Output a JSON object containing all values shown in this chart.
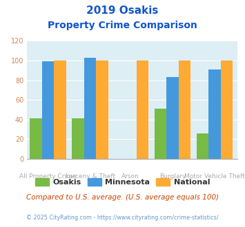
{
  "title_line1": "2019 Osakis",
  "title_line2": "Property Crime Comparison",
  "categories": [
    "All Property Crime",
    "Larceny & Theft",
    "Arson",
    "Burglary",
    "Motor Vehicle Theft"
  ],
  "cat_line1": [
    "",
    "Larceny & Theft",
    "",
    "Burglary",
    ""
  ],
  "cat_line2": [
    "All Property Crime",
    "",
    "Arson",
    "",
    "Motor Vehicle Theft"
  ],
  "osakis": [
    41,
    41,
    0,
    51,
    26
  ],
  "minnesota": [
    99,
    103,
    0,
    83,
    91
  ],
  "national": [
    100,
    100,
    100,
    100,
    100
  ],
  "osakis_color": "#77bb44",
  "minnesota_color": "#4499dd",
  "national_color": "#ffaa33",
  "bg_color": "#ddeef5",
  "title_color": "#1155cc",
  "ylabel_max": 120,
  "yticks": [
    0,
    20,
    40,
    60,
    80,
    100,
    120
  ],
  "footnote": "Compared to U.S. average. (U.S. average equals 100)",
  "copyright": "© 2025 CityRating.com - https://www.cityrating.com/crime-statistics/",
  "legend_labels": [
    "Osakis",
    "Minnesota",
    "National"
  ],
  "footnote_color": "#cc4400",
  "copyright_color": "#6699cc"
}
